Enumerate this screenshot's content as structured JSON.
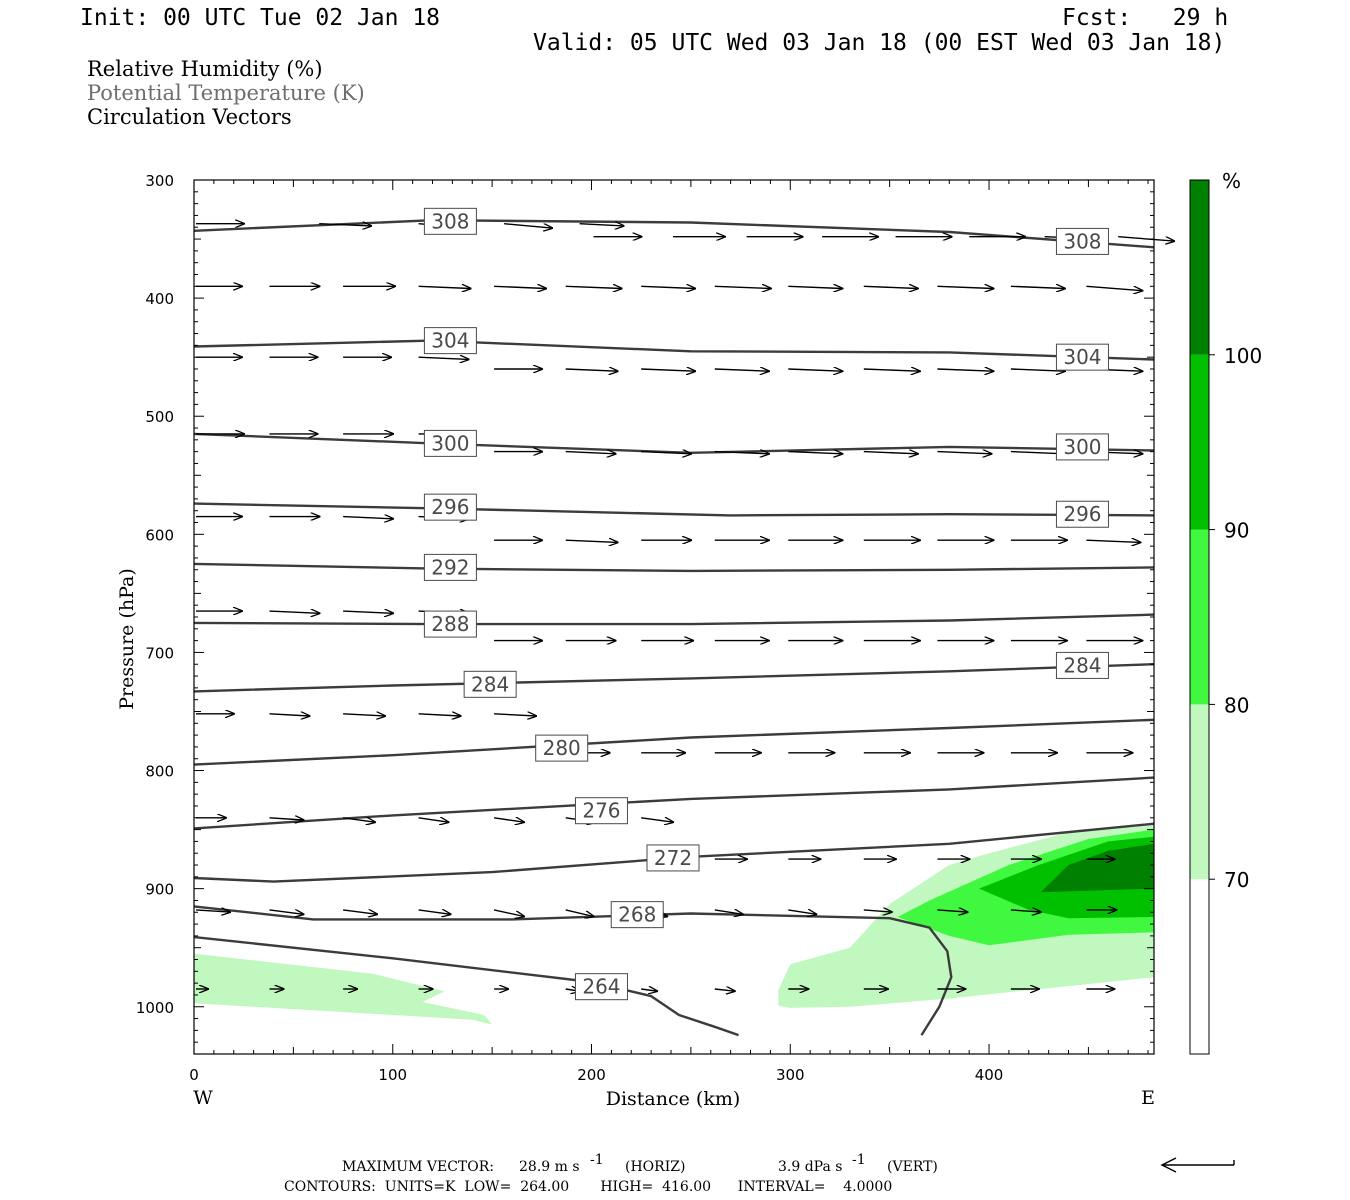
{
  "header": {
    "init": "Init: 00 UTC Tue 02 Jan 18",
    "fcst": "Fcst:   29 h",
    "valid": "Valid: 05 UTC Wed 03 Jan 18 (00 EST Wed 03 Jan 18)"
  },
  "fields": {
    "rh": "Relative Humidity (%)",
    "theta": "Potential Temperature (K)",
    "vectors": "Circulation Vectors"
  },
  "colors": {
    "rh_70_80": "#c0f8c0",
    "rh_80_90": "#40f840",
    "rh_90_100": "#00c000",
    "rh_100": "#008000",
    "contour": "#3c3c3c"
  },
  "footer": {
    "max_vector_label": "MAXIMUM VECTOR:",
    "max_vector_horiz": "28.9 m s",
    "horiz_sup": "-1",
    "horiz_tag": "(HORIZ)",
    "max_vector_vert": "3.9 dPa s",
    "vert_sup": "-1",
    "vert_tag": "(VERT)",
    "contours": "CONTOURS:  UNITS=K  LOW=  264.00       HIGH=  416.00      INTERVAL=    4.0000"
  },
  "chart_data": {
    "type": "cross-section",
    "xlabel": "Distance (km)",
    "ylabel": "Pressure (hPa)",
    "xlim": [
      0,
      483
    ],
    "ylim": [
      1040,
      300
    ],
    "x_ticks": [
      0,
      100,
      200,
      300,
      400
    ],
    "y_ticks": [
      300,
      400,
      500,
      600,
      700,
      800,
      900,
      1000
    ],
    "x_end_labels": {
      "left": "W",
      "right": "E"
    },
    "colorbar": {
      "unit_label": "%",
      "levels": [
        70,
        80,
        90,
        100
      ],
      "range": [
        60,
        110
      ]
    },
    "theta_contours": [
      {
        "value": 308,
        "label": "308",
        "points": [
          [
            0,
            343
          ],
          [
            120,
            334
          ],
          [
            250,
            336
          ],
          [
            380,
            344
          ],
          [
            483,
            357
          ]
        ]
      },
      {
        "value": 304,
        "label": "304",
        "points": [
          [
            0,
            441
          ],
          [
            120,
            436
          ],
          [
            250,
            445
          ],
          [
            380,
            446
          ],
          [
            483,
            452
          ]
        ]
      },
      {
        "value": 300,
        "label": "300",
        "points": [
          [
            0,
            515
          ],
          [
            120,
            523
          ],
          [
            250,
            531
          ],
          [
            380,
            526
          ],
          [
            483,
            529
          ]
        ]
      },
      {
        "value": 296,
        "label": "296",
        "points": [
          [
            0,
            574
          ],
          [
            120,
            578
          ],
          [
            270,
            584
          ],
          [
            380,
            583
          ],
          [
            483,
            584
          ]
        ]
      },
      {
        "value": 292,
        "label": "292",
        "points": [
          [
            0,
            625
          ],
          [
            120,
            629
          ],
          [
            250,
            631
          ],
          [
            380,
            630
          ],
          [
            483,
            628
          ]
        ]
      },
      {
        "value": 288,
        "label": "288",
        "points": [
          [
            0,
            675
          ],
          [
            120,
            676
          ],
          [
            250,
            676
          ],
          [
            380,
            673
          ],
          [
            483,
            668
          ]
        ]
      },
      {
        "value": 284,
        "label": "284",
        "points": [
          [
            0,
            733
          ],
          [
            100,
            728
          ],
          [
            250,
            722
          ],
          [
            380,
            716
          ],
          [
            483,
            710
          ]
        ]
      },
      {
        "value": 280,
        "label": "280",
        "points": [
          [
            0,
            795
          ],
          [
            100,
            787
          ],
          [
            250,
            772
          ],
          [
            380,
            764
          ],
          [
            483,
            757
          ]
        ]
      },
      {
        "value": 276,
        "label": "276",
        "points": [
          [
            0,
            849
          ],
          [
            100,
            838
          ],
          [
            250,
            824
          ],
          [
            380,
            816
          ],
          [
            483,
            806
          ]
        ]
      },
      {
        "value": 272,
        "label": "272",
        "points": [
          [
            0,
            891
          ],
          [
            40,
            894
          ],
          [
            150,
            886
          ],
          [
            250,
            873
          ],
          [
            380,
            862
          ],
          [
            483,
            845
          ]
        ]
      },
      {
        "value": 268,
        "label": "268",
        "points": [
          [
            0,
            915
          ],
          [
            60,
            926
          ],
          [
            160,
            926
          ],
          [
            250,
            921
          ],
          [
            350,
            925
          ],
          [
            370,
            933
          ],
          [
            379,
            953
          ],
          [
            381,
            975
          ],
          [
            375,
            1000
          ],
          [
            366,
            1024
          ]
        ]
      },
      {
        "value": 264,
        "label": "264",
        "points": [
          [
            0,
            941
          ],
          [
            100,
            959
          ],
          [
            200,
            979
          ],
          [
            230,
            991
          ],
          [
            244,
            1007
          ],
          [
            262,
            1017
          ],
          [
            274,
            1024
          ]
        ]
      }
    ],
    "theta_label_positions": [
      {
        "label": "308",
        "x": 129,
        "p": 335
      },
      {
        "label": "308",
        "x": 447,
        "p": 352
      },
      {
        "label": "304",
        "x": 129,
        "p": 436
      },
      {
        "label": "304",
        "x": 447,
        "p": 450
      },
      {
        "label": "300",
        "x": 129,
        "p": 523
      },
      {
        "label": "300",
        "x": 447,
        "p": 526
      },
      {
        "label": "296",
        "x": 129,
        "p": 577
      },
      {
        "label": "296",
        "x": 447,
        "p": 583
      },
      {
        "label": "292",
        "x": 129,
        "p": 628
      },
      {
        "label": "288",
        "x": 129,
        "p": 676
      },
      {
        "label": "284",
        "x": 149,
        "p": 727
      },
      {
        "label": "284",
        "x": 447,
        "p": 711
      },
      {
        "label": "280",
        "x": 185,
        "p": 781
      },
      {
        "label": "276",
        "x": 205,
        "p": 834
      },
      {
        "label": "272",
        "x": 241,
        "p": 874
      },
      {
        "label": "268",
        "x": 223,
        "p": 922
      },
      {
        "label": "264",
        "x": 205,
        "p": 983
      }
    ],
    "rh_regions": [
      {
        "level": "70-80",
        "polygon": [
          [
            0,
            955
          ],
          [
            0,
            997
          ],
          [
            140,
            1011
          ],
          [
            150,
            1015
          ],
          [
            146,
            1007
          ],
          [
            115,
            996
          ],
          [
            126,
            987
          ],
          [
            90,
            972
          ]
        ]
      },
      {
        "level": "70-80",
        "polygon": [
          [
            294,
            986
          ],
          [
            294,
            999
          ],
          [
            300,
            1001
          ],
          [
            330,
            1000
          ],
          [
            380,
            993
          ],
          [
            420,
            986
          ],
          [
            483,
            975
          ],
          [
            483,
            845
          ],
          [
            445,
            850
          ],
          [
            400,
            870
          ],
          [
            380,
            880
          ],
          [
            350,
            913
          ],
          [
            330,
            950
          ],
          [
            300,
            964
          ]
        ]
      },
      {
        "level": "80-90",
        "polygon": [
          [
            354,
            924
          ],
          [
            380,
            940
          ],
          [
            400,
            948
          ],
          [
            440,
            939
          ],
          [
            483,
            937
          ],
          [
            483,
            850
          ],
          [
            450,
            858
          ],
          [
            410,
            880
          ],
          [
            370,
            910
          ]
        ]
      },
      {
        "level": "90-100",
        "polygon": [
          [
            395,
            900
          ],
          [
            420,
            918
          ],
          [
            440,
            925
          ],
          [
            483,
            924
          ],
          [
            483,
            856
          ],
          [
            460,
            860
          ],
          [
            425,
            880
          ]
        ]
      },
      {
        "level": "100+",
        "polygon": [
          [
            426,
            903
          ],
          [
            483,
            900
          ],
          [
            483,
            862
          ],
          [
            460,
            868
          ],
          [
            440,
            880
          ]
        ]
      }
    ],
    "vector_rows": [
      {
        "p": 337,
        "x": [
          0,
          62,
          112,
          155,
          193
        ],
        "u": [
          24,
          26,
          26,
          24,
          22
        ],
        "w": [
          0,
          -1,
          -2,
          -2,
          -1
        ]
      },
      {
        "p": 348,
        "x": [
          200,
          240,
          277,
          315,
          352,
          389,
          427,
          464
        ],
        "u": [
          24,
          26,
          28,
          28,
          28,
          28,
          28,
          28
        ],
        "w": [
          0,
          0,
          0,
          0,
          0,
          0,
          -1,
          -2
        ]
      },
      {
        "p": 390,
        "x": [
          0,
          37,
          74,
          112,
          150,
          186,
          224,
          261,
          298,
          336,
          373,
          410,
          448
        ],
        "u": [
          23,
          25,
          26,
          26,
          26,
          28,
          27,
          28,
          27,
          27,
          28,
          27,
          28
        ],
        "w": [
          0,
          0,
          0,
          -1,
          -1,
          -1,
          -1,
          -1,
          -1,
          -1,
          -1,
          -1,
          -2
        ]
      },
      {
        "p": 450,
        "x": [
          0,
          37,
          74,
          112
        ],
        "u": [
          23,
          24,
          24,
          25
        ],
        "w": [
          0,
          0,
          0,
          -1
        ]
      },
      {
        "p": 460,
        "x": [
          150,
          186,
          224,
          261,
          298,
          336,
          373,
          410,
          448
        ],
        "u": [
          24,
          26,
          27,
          27,
          27,
          28,
          28,
          27,
          28
        ],
        "w": [
          0,
          -1,
          -1,
          -1,
          -1,
          -1,
          -1,
          -1,
          -1
        ]
      },
      {
        "p": 515,
        "x": [
          0,
          37,
          74,
          112
        ],
        "u": [
          24,
          24,
          25,
          26
        ],
        "w": [
          0,
          0,
          0,
          0
        ]
      },
      {
        "p": 530,
        "x": [
          150,
          186,
          224,
          261,
          298,
          336,
          373,
          410,
          448
        ],
        "u": [
          24,
          25,
          25,
          27,
          27,
          27,
          27,
          27,
          28
        ],
        "w": [
          0,
          -1,
          -1,
          -1,
          -1,
          -1,
          -1,
          -1,
          -1
        ]
      },
      {
        "p": 585,
        "x": [
          0,
          37,
          74,
          112
        ],
        "u": [
          23,
          25,
          25,
          25
        ],
        "w": [
          0,
          0,
          -1,
          -1
        ]
      },
      {
        "p": 605,
        "x": [
          150,
          186,
          224,
          261,
          298,
          336,
          373,
          410,
          448
        ],
        "u": [
          24,
          26,
          25,
          27,
          27,
          28,
          28,
          28,
          27
        ],
        "w": [
          0,
          -1,
          0,
          0,
          0,
          0,
          0,
          0,
          -1
        ]
      },
      {
        "p": 665,
        "x": [
          0,
          37,
          74,
          112
        ],
        "u": [
          23,
          25,
          25,
          25
        ],
        "w": [
          0,
          -1,
          -1,
          -1
        ]
      },
      {
        "p": 690,
        "x": [
          150,
          186,
          224,
          261,
          298,
          336,
          373,
          410,
          448
        ],
        "u": [
          24,
          25,
          26,
          27,
          27,
          28,
          28,
          28,
          28
        ],
        "w": [
          0,
          0,
          0,
          0,
          0,
          0,
          0,
          0,
          0
        ]
      },
      {
        "p": 752,
        "x": [
          0,
          37,
          74,
          112,
          150
        ],
        "u": [
          19,
          20,
          21,
          21,
          21
        ],
        "w": [
          0,
          -1,
          -1,
          -1,
          -1
        ]
      },
      {
        "p": 785,
        "x": [
          186,
          224,
          261,
          298,
          336,
          373,
          410,
          448
        ],
        "u": [
          22,
          22,
          23,
          23,
          23,
          23,
          23,
          23
        ],
        "w": [
          0,
          0,
          0,
          0,
          0,
          0,
          0,
          0
        ]
      },
      {
        "p": 840,
        "x": [
          0,
          37,
          74,
          112,
          150,
          186,
          224
        ],
        "u": [
          15,
          17,
          16,
          15,
          15,
          15,
          16
        ],
        "w": [
          0,
          -1,
          -2,
          -2,
          -2,
          -2,
          -2
        ]
      },
      {
        "p": 875,
        "x": [
          261,
          298,
          336,
          373,
          410,
          448
        ],
        "u": [
          16,
          16,
          16,
          16,
          15,
          14
        ],
        "w": [
          0,
          0,
          0,
          0,
          0,
          0
        ]
      },
      {
        "p": 918,
        "x": [
          0,
          37,
          74,
          112,
          150,
          186,
          224,
          261,
          298,
          336,
          373,
          410,
          448
        ],
        "u": [
          17,
          17,
          17,
          16,
          15,
          14,
          13,
          14,
          14,
          14,
          15,
          15,
          15
        ],
        "w": [
          -1,
          -2,
          -2,
          -2,
          -3,
          -3,
          -3,
          -2,
          -2,
          -1,
          -1,
          -1,
          0
        ]
      },
      {
        "p": 985,
        "x": [
          0,
          37,
          74,
          112,
          150,
          186,
          224,
          261,
          298,
          336,
          373,
          410,
          448
        ],
        "u": [
          6,
          7,
          7,
          7,
          7,
          7,
          8,
          10,
          10,
          12,
          14,
          14,
          14
        ],
        "w": [
          0,
          0,
          0,
          0,
          0,
          -1,
          -1,
          -1,
          0,
          0,
          0,
          0,
          0
        ]
      }
    ]
  }
}
